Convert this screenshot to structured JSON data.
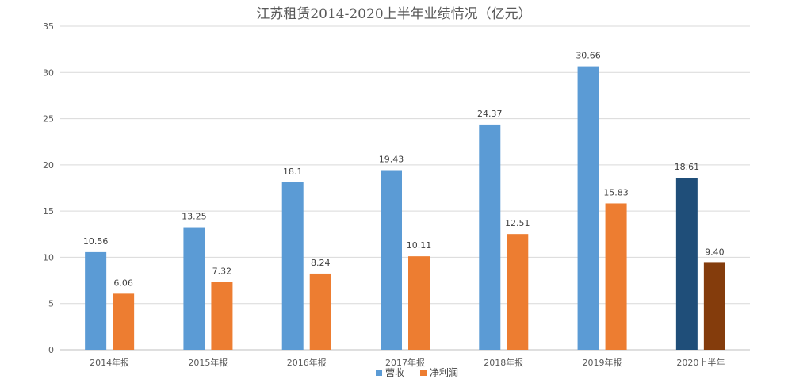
{
  "chart_data": {
    "type": "bar",
    "title": "江苏租赁2014-2020上半年业绩情况（亿元）",
    "categories": [
      "2014年报",
      "2015年报",
      "2016年报",
      "2017年报",
      "2018年报",
      "2019年报",
      "2020上半年"
    ],
    "series": [
      {
        "name": "营收",
        "values": [
          10.56,
          13.25,
          18.1,
          19.43,
          24.37,
          30.66,
          18.61
        ],
        "labels": [
          "10.56",
          "13.25",
          "18.1",
          "19.43",
          "24.37",
          "30.66",
          "18.61"
        ],
        "color": "#5B9BD5",
        "highlight_color": "#1F4E79"
      },
      {
        "name": "净利润",
        "values": [
          6.06,
          7.32,
          8.24,
          10.11,
          12.51,
          15.83,
          9.4
        ],
        "labels": [
          "6.06",
          "7.32",
          "8.24",
          "10.11",
          "12.51",
          "15.83",
          "9.40"
        ],
        "color": "#ED7D31",
        "highlight_color": "#843C0C"
      }
    ],
    "highlight_category_index": 6,
    "ylim": [
      0,
      35
    ],
    "yticks": [
      0,
      5,
      10,
      15,
      20,
      25,
      30,
      35
    ],
    "grid": true,
    "legend_position": "bottom",
    "xlabel": "",
    "ylabel": ""
  }
}
